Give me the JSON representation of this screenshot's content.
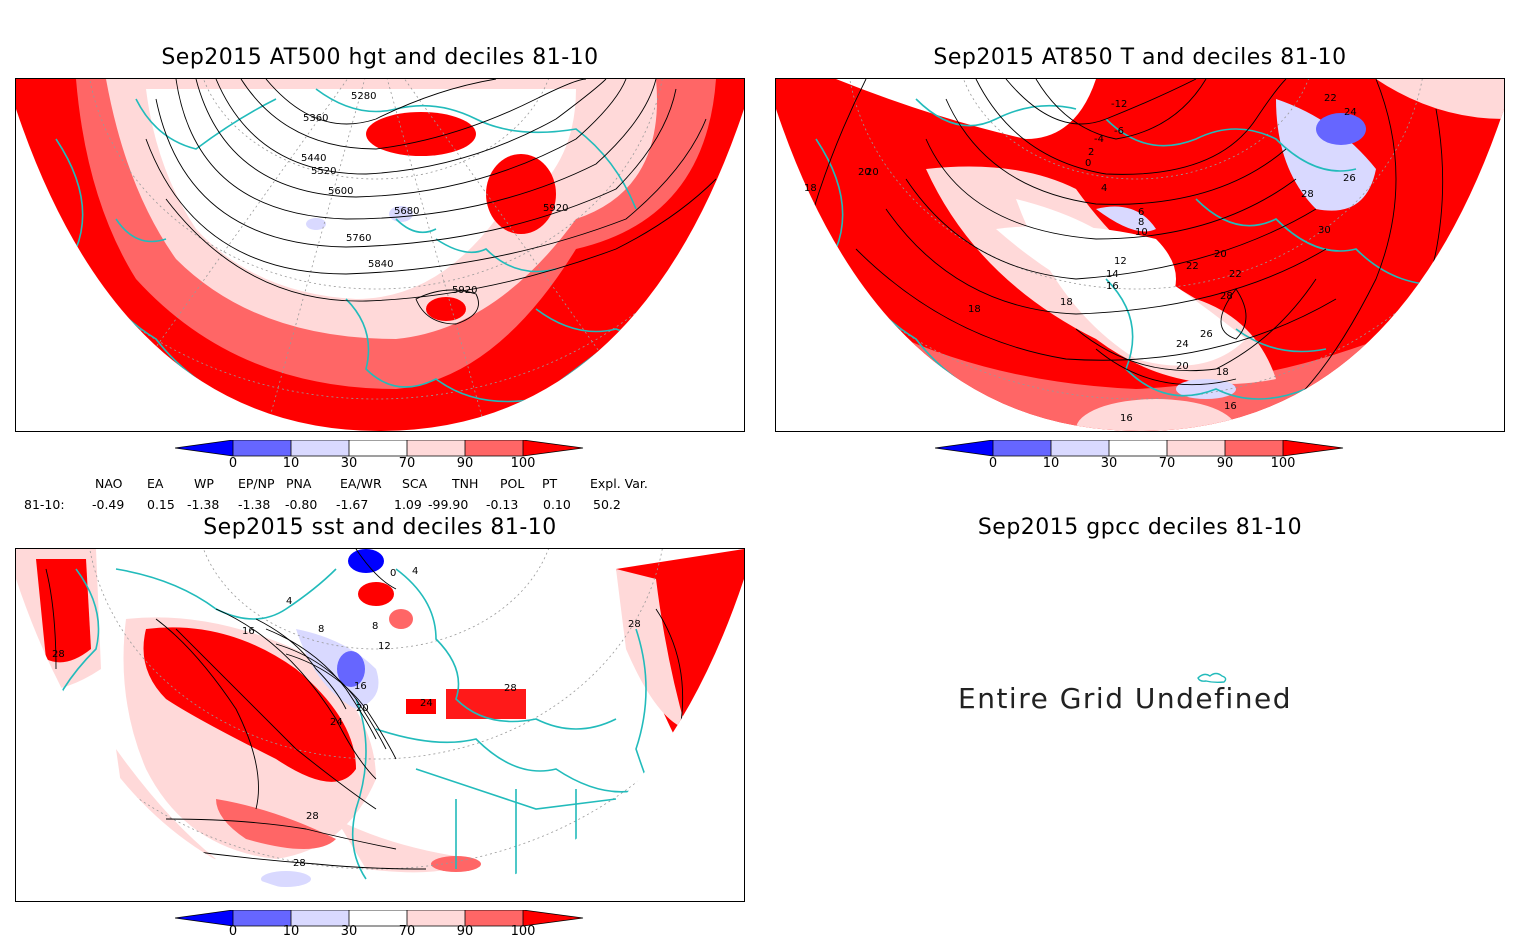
{
  "panels": {
    "hgt": {
      "title": "Sep2015 AT500 hgt and deciles 81-10",
      "contour_labels": [
        "5280",
        "5360",
        "5440",
        "5520",
        "5600",
        "5680",
        "5760",
        "5840",
        "5920",
        "5920"
      ]
    },
    "t850": {
      "title": "Sep2015 AT850 T and deciles 81-10",
      "contour_labels": [
        "-12",
        "-6",
        "-4",
        "2",
        "0",
        "4",
        "6",
        "8",
        "10",
        "12",
        "14",
        "16",
        "18",
        "18",
        "18",
        "20",
        "20",
        "20",
        "22",
        "22",
        "24",
        "24",
        "26",
        "26",
        "28",
        "28",
        "30",
        "22",
        "18",
        "16",
        "16",
        "20"
      ]
    },
    "sst": {
      "title": "Sep2015 sst and deciles 81-10",
      "contour_labels": [
        "4",
        "8",
        "12",
        "16",
        "20",
        "24",
        "24",
        "28",
        "28",
        "28",
        "28",
        "28",
        "16",
        "4",
        "0",
        "8"
      ]
    },
    "gpcc": {
      "title": "Sep2015 gpcc deciles 81-10",
      "message": "Entire Grid Undefined"
    }
  },
  "colorbar": {
    "ticks": [
      "0",
      "10",
      "30",
      "70",
      "90",
      "100"
    ],
    "colors": [
      "#0000ff",
      "#6666ff",
      "#d9d9ff",
      "#ffffff",
      "#ffd9d9",
      "#ff6666",
      "#ff0000"
    ]
  },
  "teleconnections": {
    "headers": [
      "NAO",
      "EA",
      "WP",
      "EP/NP",
      "PNA",
      "EA/WR",
      "SCA",
      "TNH",
      "POL",
      "PT",
      "Expl. Var."
    ],
    "row_label": "81-10:",
    "values": [
      "-0.49",
      "0.15",
      "-1.38",
      "-1.38",
      "-0.80",
      "-1.67",
      "1.09",
      "-99.90",
      "-0.13",
      "0.10",
      "50.2"
    ]
  },
  "colors": {
    "coast": "#22bbbb",
    "contour": "#000000",
    "grid": "#999999"
  }
}
